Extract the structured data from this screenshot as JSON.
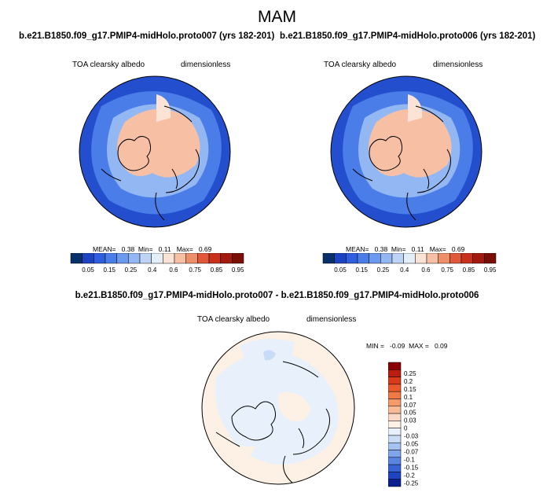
{
  "header": {
    "title": "MAM",
    "case1_title": "b.e21.B1850.f09_g17.PMIP4-midHolo.proto007 (yrs 182-201)",
    "case2_title": "b.e21.B1850.f09_g17.PMIP4-midHolo.proto006 (yrs 182-201)",
    "diff_title": "b.e21.B1850.f09_g17.PMIP4-midHolo.proto007 - b.e21.B1850.f09_g17.PMIP4-midHolo.proto006"
  },
  "panels": [
    {
      "variable": "TOA clearsky albedo",
      "units": "dimensionless",
      "mean_label": "MEAN=",
      "mean": "0.38",
      "min_label": "Min=",
      "min": "0.11",
      "max_label": "Max=",
      "max": "0.69"
    },
    {
      "variable": "TOA clearsky albedo",
      "units": "dimensionless",
      "mean_label": "MEAN=",
      "mean": "0.38",
      "min_label": "Min=",
      "min": "0.11",
      "max_label": "Max=",
      "max": "0.69"
    },
    {
      "variable": "TOA clearsky albedo",
      "units": "dimensionless",
      "min_label": "MIN =",
      "min": "-0.09",
      "max_label": "MAX =",
      "max": "0.09"
    }
  ],
  "chart_data": [
    {
      "type": "heatmap",
      "projection": "north-polar-stereographic",
      "title": "b.e21.B1850.f09_g17.PMIP4-midHolo.proto007 (yrs 182-201)",
      "colorbar": {
        "orientation": "horizontal",
        "labels": [
          "0.05",
          "0.15",
          "0.25",
          "0.4",
          "0.6",
          "0.75",
          "0.85",
          "0.95"
        ],
        "colors": [
          "#08306b",
          "#1c44c2",
          "#2f5fe0",
          "#4b7de8",
          "#6b99ee",
          "#93b7f2",
          "#bfd3f5",
          "#e3eef9",
          "#fbe3d6",
          "#f7c0a5",
          "#ef8f6a",
          "#e2583a",
          "#c8321d",
          "#a31a0e",
          "#7a0d05"
        ]
      },
      "stats": {
        "mean": 0.38,
        "min": 0.11,
        "max": 0.69
      }
    },
    {
      "type": "heatmap",
      "projection": "north-polar-stereographic",
      "title": "b.e21.B1850.f09_g17.PMIP4-midHolo.proto006 (yrs 182-201)",
      "colorbar": {
        "orientation": "horizontal",
        "labels": [
          "0.05",
          "0.15",
          "0.25",
          "0.4",
          "0.6",
          "0.75",
          "0.85",
          "0.95"
        ],
        "colors": [
          "#08306b",
          "#1c44c2",
          "#2f5fe0",
          "#4b7de8",
          "#6b99ee",
          "#93b7f2",
          "#bfd3f5",
          "#e3eef9",
          "#fbe3d6",
          "#f7c0a5",
          "#ef8f6a",
          "#e2583a",
          "#c8321d",
          "#a31a0e",
          "#7a0d05"
        ]
      },
      "stats": {
        "mean": 0.38,
        "min": 0.11,
        "max": 0.69
      }
    },
    {
      "type": "heatmap",
      "projection": "north-polar-stereographic",
      "title": "b.e21.B1850.f09_g17.PMIP4-midHolo.proto007 - b.e21.B1850.f09_g17.PMIP4-midHolo.proto006",
      "colorbar": {
        "orientation": "vertical",
        "labels": [
          "0.25",
          "0.2",
          "0.15",
          "0.1",
          "0.07",
          "0.05",
          "0.03",
          "0",
          "-0.03",
          "-0.05",
          "-0.07",
          "-0.1",
          "-0.15",
          "-0.2",
          "-0.25"
        ],
        "colors": [
          "#8b0000",
          "#b81d0f",
          "#d83a1c",
          "#ea5a2c",
          "#f07a45",
          "#f49a6b",
          "#f8bb97",
          "#fbd9c4",
          "#fdf0e4",
          "#e8f1fb",
          "#c8dcf6",
          "#a5c3f0",
          "#7fa6e9",
          "#5884e2",
          "#3862d6",
          "#1f44c1",
          "#0a1f8f"
        ]
      },
      "stats": {
        "min": -0.09,
        "max": 0.09
      }
    }
  ]
}
